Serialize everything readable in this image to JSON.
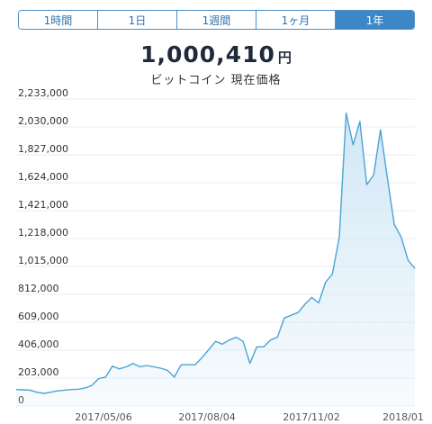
{
  "tabs": [
    {
      "label": "1時間",
      "active": false
    },
    {
      "label": "1日",
      "active": false
    },
    {
      "label": "1週間",
      "active": false
    },
    {
      "label": "1ヶ月",
      "active": false
    },
    {
      "label": "1年",
      "active": true
    }
  ],
  "price": {
    "value": "1,000,410",
    "unit": "円"
  },
  "subtitle": "ビットコイン 現在価格",
  "colors": {
    "accent": "#3d87c6",
    "line": "#4aa3d6",
    "fill": "#cfe6f5"
  },
  "chart_data": {
    "type": "area",
    "title": "",
    "xlabel": "",
    "ylabel": "",
    "ylim": [
      0,
      2233000
    ],
    "y_ticks": [
      2233000,
      2030000,
      1827000,
      1624000,
      1421000,
      1218000,
      1015000,
      812000,
      609000,
      406000,
      203000,
      0
    ],
    "y_tick_labels": [
      "2,233,000",
      "2,030,000",
      "1,827,000",
      "1,624,000",
      "1,421,000",
      "1,218,000",
      "1,015,000",
      "812,000",
      "609,000",
      "406,000",
      "203,000",
      "0"
    ],
    "x_tick_labels": [
      "2017/05/06",
      "2017/08/04",
      "2017/11/02",
      "2018/01"
    ],
    "grid": true,
    "series": [
      {
        "values": [
          120000,
          118000,
          115000,
          100000,
          92000,
          100000,
          110000,
          115000,
          120000,
          122000,
          130000,
          150000,
          200000,
          210000,
          290000,
          270000,
          285000,
          310000,
          285000,
          295000,
          285000,
          275000,
          260000,
          210000,
          300000,
          300000,
          300000,
          350000,
          410000,
          470000,
          450000,
          480000,
          500000,
          470000,
          310000,
          430000,
          430000,
          480000,
          500000,
          640000,
          660000,
          680000,
          740000,
          790000,
          750000,
          900000,
          960000,
          1230000,
          2130000,
          1900000,
          2070000,
          1610000,
          1680000,
          2010000,
          1660000,
          1320000,
          1230000,
          1060000,
          1000410
        ]
      }
    ]
  }
}
